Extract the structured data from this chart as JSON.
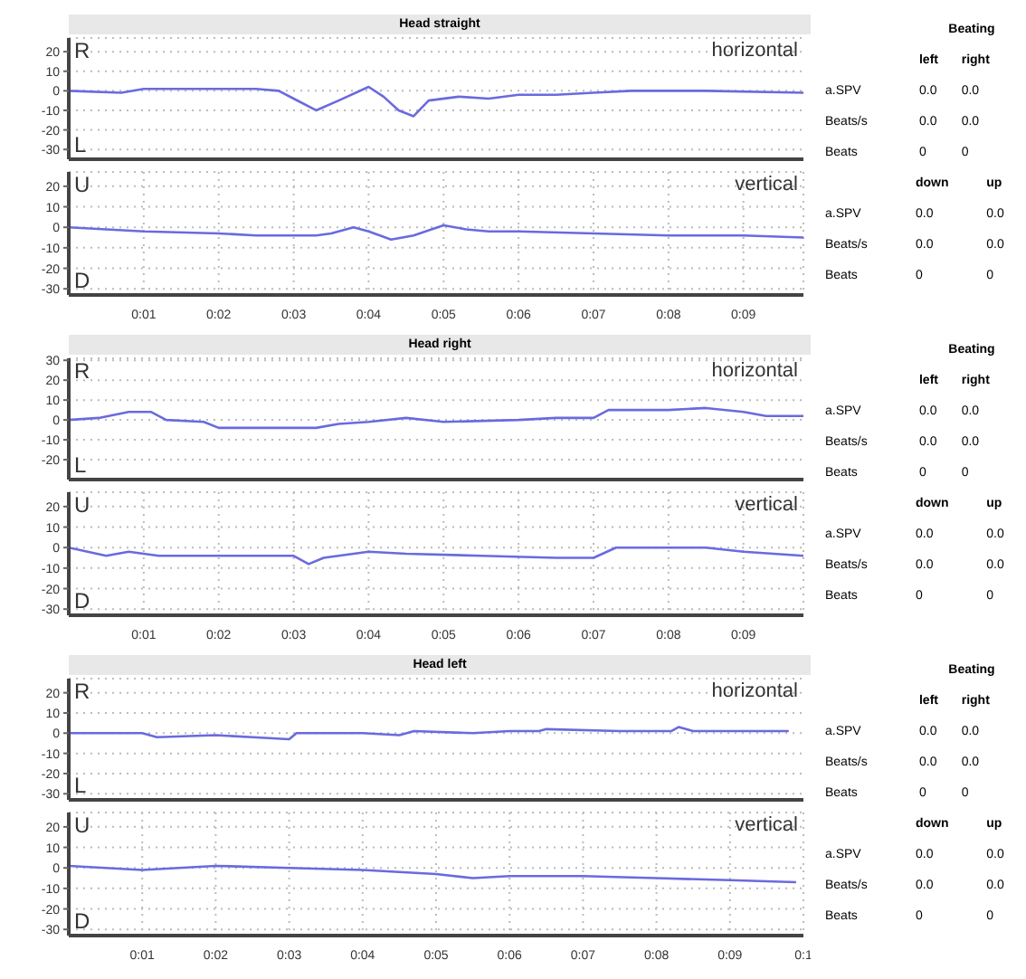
{
  "chart_data": [
    {
      "type": "line",
      "title": "Head straight",
      "subtitle": "horizontal",
      "annotations": [
        "R",
        "L",
        "Beating",
        "left",
        "right",
        "a.SPV",
        "0.0",
        "0.0",
        "Beats/s",
        "0.0",
        "0.0",
        "Beats",
        "0",
        "0"
      ],
      "x": [
        0,
        0.7,
        1.0,
        2.5,
        2.8,
        3.0,
        3.3,
        3.6,
        4.0,
        4.2,
        4.4,
        4.6,
        4.8,
        5.2,
        5.6,
        6.0,
        6.5,
        7.0,
        7.5,
        8.5,
        9.8
      ],
      "series": [
        {
          "color": "#6a6adf",
          "values": [
            0,
            -1,
            1,
            1,
            0,
            -4,
            -10,
            -5,
            2,
            -3,
            -10,
            -13,
            -5,
            -3,
            -4,
            -2,
            -2,
            -1,
            0,
            0,
            -1
          ]
        }
      ],
      "xlim": [
        0,
        9.8
      ],
      "ylim": [
        -35,
        27
      ],
      "yticks": [
        20,
        10,
        0,
        -10,
        -20,
        -30
      ],
      "grid": "y",
      "tick_labels": "y"
    },
    {
      "type": "line",
      "subtitle": "vertical",
      "annotations": [
        "U",
        "D",
        "down",
        "up",
        "a.SPV",
        "0.0",
        "0.0",
        "Beats/s",
        "0.0",
        "0.0",
        "Beats",
        "0",
        "0"
      ],
      "x": [
        0,
        1,
        2,
        2.5,
        3.3,
        3.5,
        3.8,
        4.0,
        4.3,
        4.6,
        5.0,
        5.3,
        5.6,
        6,
        7,
        8,
        9,
        9.8
      ],
      "series": [
        {
          "color": "#6a6adf",
          "values": [
            0,
            -2,
            -3,
            -4,
            -4,
            -3,
            0,
            -2,
            -6,
            -4,
            1,
            -1,
            -2,
            -2,
            -3,
            -4,
            -4,
            -5
          ]
        }
      ],
      "xlim": [
        0,
        9.8
      ],
      "xticks": [
        {
          "value": 1,
          "label": "0:01"
        },
        {
          "value": 2,
          "label": "0:02"
        },
        {
          "value": 3,
          "label": "0:03"
        },
        {
          "value": 4,
          "label": "0:04"
        },
        {
          "value": 5,
          "label": "0:05"
        },
        {
          "value": 6,
          "label": "0:06"
        },
        {
          "value": 7,
          "label": "0:07"
        },
        {
          "value": 8,
          "label": "0:08"
        },
        {
          "value": 9,
          "label": "0:09"
        }
      ],
      "ylim": [
        -33,
        27
      ],
      "yticks": [
        20,
        10,
        0,
        -10,
        -20,
        -30
      ],
      "grid": true
    },
    {
      "type": "line",
      "title": "Head right",
      "subtitle": "horizontal",
      "annotations": [
        "R",
        "L",
        "Beating",
        "left",
        "right",
        "a.SPV",
        "0.0",
        "0.0",
        "Beats/s",
        "0.0",
        "0.0",
        "Beats",
        "0",
        "0"
      ],
      "x": [
        0,
        0.4,
        0.8,
        1.1,
        1.3,
        1.8,
        2.0,
        3.0,
        3.3,
        3.6,
        4.0,
        4.5,
        5.0,
        6.0,
        6.5,
        7.0,
        7.2,
        8.0,
        8.5,
        9.0,
        9.3,
        9.8
      ],
      "series": [
        {
          "color": "#6a6adf",
          "values": [
            0,
            1,
            4,
            4,
            0,
            -1,
            -4,
            -4,
            -4,
            -2,
            -1,
            1,
            -1,
            0,
            1,
            1,
            5,
            5,
            6,
            4,
            2,
            2
          ]
        }
      ],
      "xlim": [
        0,
        9.8
      ],
      "ylim": [
        -30,
        31
      ],
      "yticks": [
        30,
        20,
        10,
        0,
        -10,
        -20
      ],
      "grid": "y",
      "tick_labels": "y"
    },
    {
      "type": "line",
      "subtitle": "vertical",
      "annotations": [
        "U",
        "D",
        "down",
        "up",
        "a.SPV",
        "0.0",
        "0.0",
        "Beats/s",
        "0.0",
        "0.0",
        "Beats",
        "0",
        "0"
      ],
      "x": [
        0,
        0.5,
        0.8,
        1.2,
        2.0,
        3.0,
        3.2,
        3.4,
        4.0,
        4.5,
        5.5,
        6.5,
        7.0,
        7.3,
        8.0,
        8.5,
        9.0,
        9.8
      ],
      "series": [
        {
          "color": "#6a6adf",
          "values": [
            0,
            -4,
            -2,
            -4,
            -4,
            -4,
            -8,
            -5,
            -2,
            -3,
            -4,
            -5,
            -5,
            0,
            0,
            0,
            -2,
            -4
          ]
        }
      ],
      "xlim": [
        0,
        9.8
      ],
      "xticks": [
        {
          "value": 1,
          "label": "0:01"
        },
        {
          "value": 2,
          "label": "0:02"
        },
        {
          "value": 3,
          "label": "0:03"
        },
        {
          "value": 4,
          "label": "0:04"
        },
        {
          "value": 5,
          "label": "0:05"
        },
        {
          "value": 6,
          "label": "0:06"
        },
        {
          "value": 7,
          "label": "0:07"
        },
        {
          "value": 8,
          "label": "0:08"
        },
        {
          "value": 9,
          "label": "0:09"
        }
      ],
      "ylim": [
        -33,
        27
      ],
      "yticks": [
        20,
        10,
        0,
        -10,
        -20,
        -30
      ],
      "grid": true
    },
    {
      "type": "line",
      "title": "Head left",
      "subtitle": "horizontal",
      "annotations": [
        "R",
        "L",
        "Beating",
        "left",
        "right",
        "a.SPV",
        "0.0",
        "0.0",
        "Beats/s",
        "0.0",
        "0.0",
        "Beats",
        "0",
        "0"
      ],
      "x": [
        0,
        1.0,
        1.2,
        2.0,
        2.5,
        3.0,
        3.1,
        4.0,
        4.5,
        4.7,
        5.5,
        6.0,
        6.4,
        6.5,
        7.5,
        8.2,
        8.3,
        8.5,
        9.8
      ],
      "series": [
        {
          "color": "#6a6adf",
          "values": [
            0,
            0,
            -2,
            -1,
            -2,
            -3,
            0,
            0,
            -1,
            1,
            0,
            1,
            1,
            2,
            1,
            1,
            3,
            1,
            1
          ]
        }
      ],
      "xlim": [
        0,
        10
      ],
      "ylim": [
        -33,
        27
      ],
      "yticks": [
        20,
        10,
        0,
        -10,
        -20,
        -30
      ],
      "grid": "y",
      "tick_labels": "y"
    },
    {
      "type": "line",
      "subtitle": "vertical",
      "annotations": [
        "U",
        "D",
        "down",
        "up",
        "a.SPV",
        "0.0",
        "0.0",
        "Beats/s",
        "0.0",
        "0.0",
        "Beats",
        "0",
        "0"
      ],
      "x": [
        0,
        1,
        2,
        3,
        4,
        5,
        5.5,
        6,
        7,
        8,
        9,
        9.9
      ],
      "series": [
        {
          "color": "#6a6adf",
          "values": [
            1,
            -1,
            1,
            0,
            -1,
            -3,
            -5,
            -4,
            -4,
            -5,
            -6,
            -7
          ]
        }
      ],
      "xlim": [
        0,
        10
      ],
      "xticks": [
        {
          "value": 1,
          "label": "0:01"
        },
        {
          "value": 2,
          "label": "0:02"
        },
        {
          "value": 3,
          "label": "0:03"
        },
        {
          "value": 4,
          "label": "0:04"
        },
        {
          "value": 5,
          "label": "0:05"
        },
        {
          "value": 6,
          "label": "0:06"
        },
        {
          "value": 7,
          "label": "0:07"
        },
        {
          "value": 8,
          "label": "0:08"
        },
        {
          "value": 9,
          "label": "0:09"
        },
        {
          "value": 10,
          "label": "0:1"
        }
      ],
      "ylim": [
        -33,
        27
      ],
      "yticks": [
        20,
        10,
        0,
        -10,
        -20,
        -30
      ],
      "grid": true
    }
  ]
}
